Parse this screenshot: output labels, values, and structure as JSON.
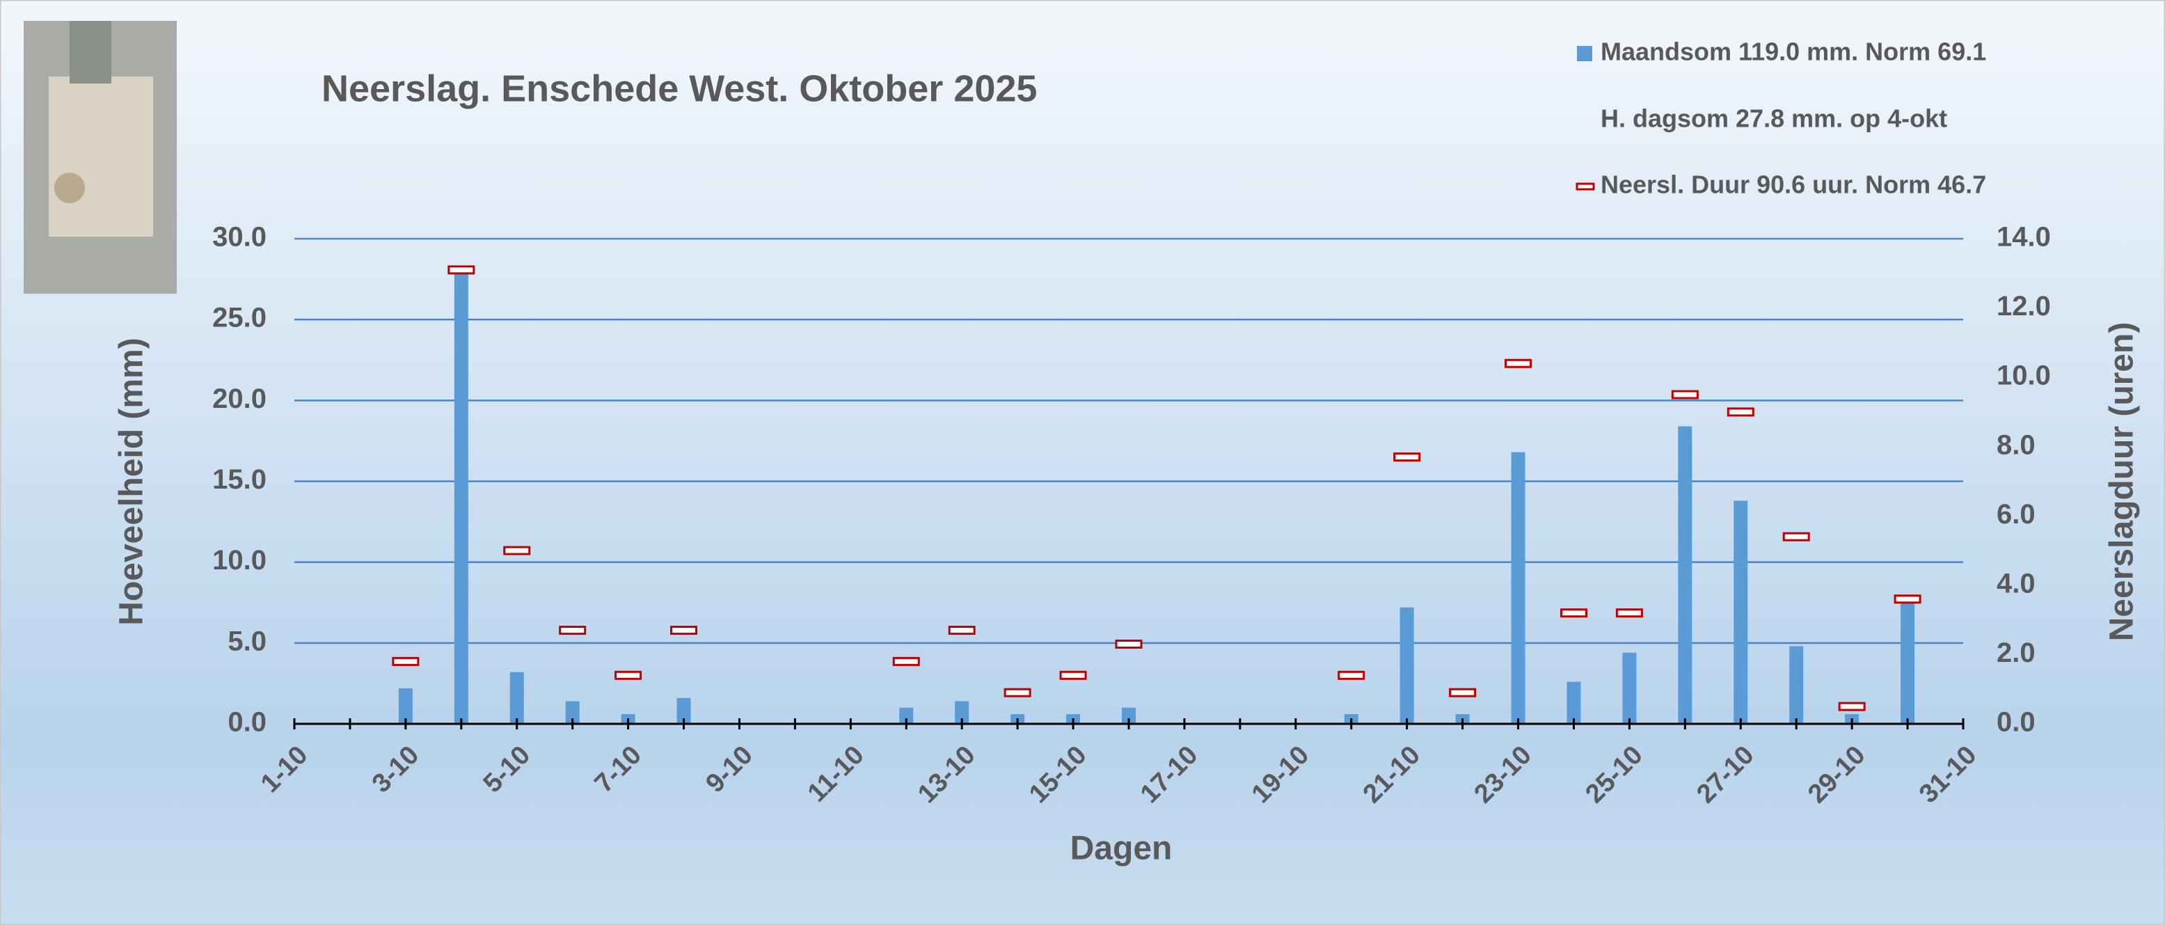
{
  "chart_data": {
    "type": "bar_line",
    "title": "Neerslag. Enschede West. Oktober 2025",
    "x_label": "Dagen",
    "y_label": "Hoeveelheid (mm)",
    "y2_label": "Neerslagduur (uren)",
    "legend_note": "H. dagsom 27.8 mm.  op  4-okt",
    "categories": [
      "1-10",
      null,
      "3-10",
      null,
      "5-10",
      null,
      "7-10",
      null,
      "9-10",
      null,
      "11-10",
      null,
      "13-10",
      null,
      "15-10",
      null,
      "17-10",
      null,
      "19-10",
      null,
      "21-10",
      null,
      "23-10",
      null,
      "25-10",
      null,
      "27-10",
      null,
      "29-10",
      null,
      "31-10"
    ],
    "series": [
      {
        "name": "Maandsom 119.0 mm. Norm 69.1",
        "color": "#5b9bd5",
        "kind": "bar",
        "values": [
          0,
          0,
          2.2,
          27.8,
          3.2,
          1.4,
          0.6,
          1.6,
          0,
          0,
          0,
          1.0,
          1.4,
          0.6,
          0.6,
          1.0,
          0,
          0,
          0,
          0.6,
          7.2,
          0.6,
          16.8,
          2.6,
          4.4,
          18.4,
          13.8,
          4.8,
          0.6,
          7.8,
          0
        ]
      },
      {
        "name": "Neersl. Duur 90.6 uur. Norm 46.7",
        "color": "#c00000",
        "kind": "marker",
        "axis": "y2",
        "values": [
          null,
          null,
          1.8,
          13.1,
          5.0,
          2.7,
          1.4,
          2.7,
          null,
          null,
          null,
          1.8,
          2.7,
          0.9,
          1.4,
          2.3,
          null,
          null,
          null,
          1.4,
          7.7,
          0.9,
          10.4,
          3.2,
          3.2,
          9.5,
          9.0,
          5.4,
          0.5,
          3.6,
          null
        ]
      }
    ],
    "ylim": [
      0,
      30
    ],
    "yticks": [
      {
        "value": 0,
        "label": "0.0"
      },
      {
        "value": 5,
        "label": "5.0"
      },
      {
        "value": 10,
        "label": "10.0"
      },
      {
        "value": 15,
        "label": "15.0"
      },
      {
        "value": 20,
        "label": "20.0"
      },
      {
        "value": 25,
        "label": "25.0"
      },
      {
        "value": 30,
        "label": "30.0"
      }
    ],
    "y2lim": [
      0,
      14
    ],
    "y2ticks": [
      {
        "value": 0,
        "label": "0.0"
      },
      {
        "value": 2,
        "label": "2.0"
      },
      {
        "value": 4,
        "label": "4.0"
      },
      {
        "value": 6,
        "label": "6.0"
      },
      {
        "value": 8,
        "label": "8.0"
      },
      {
        "value": 10,
        "label": "10.0"
      },
      {
        "value": 12,
        "label": "12.0"
      },
      {
        "value": 14,
        "label": "14.0"
      }
    ],
    "grid": true
  }
}
